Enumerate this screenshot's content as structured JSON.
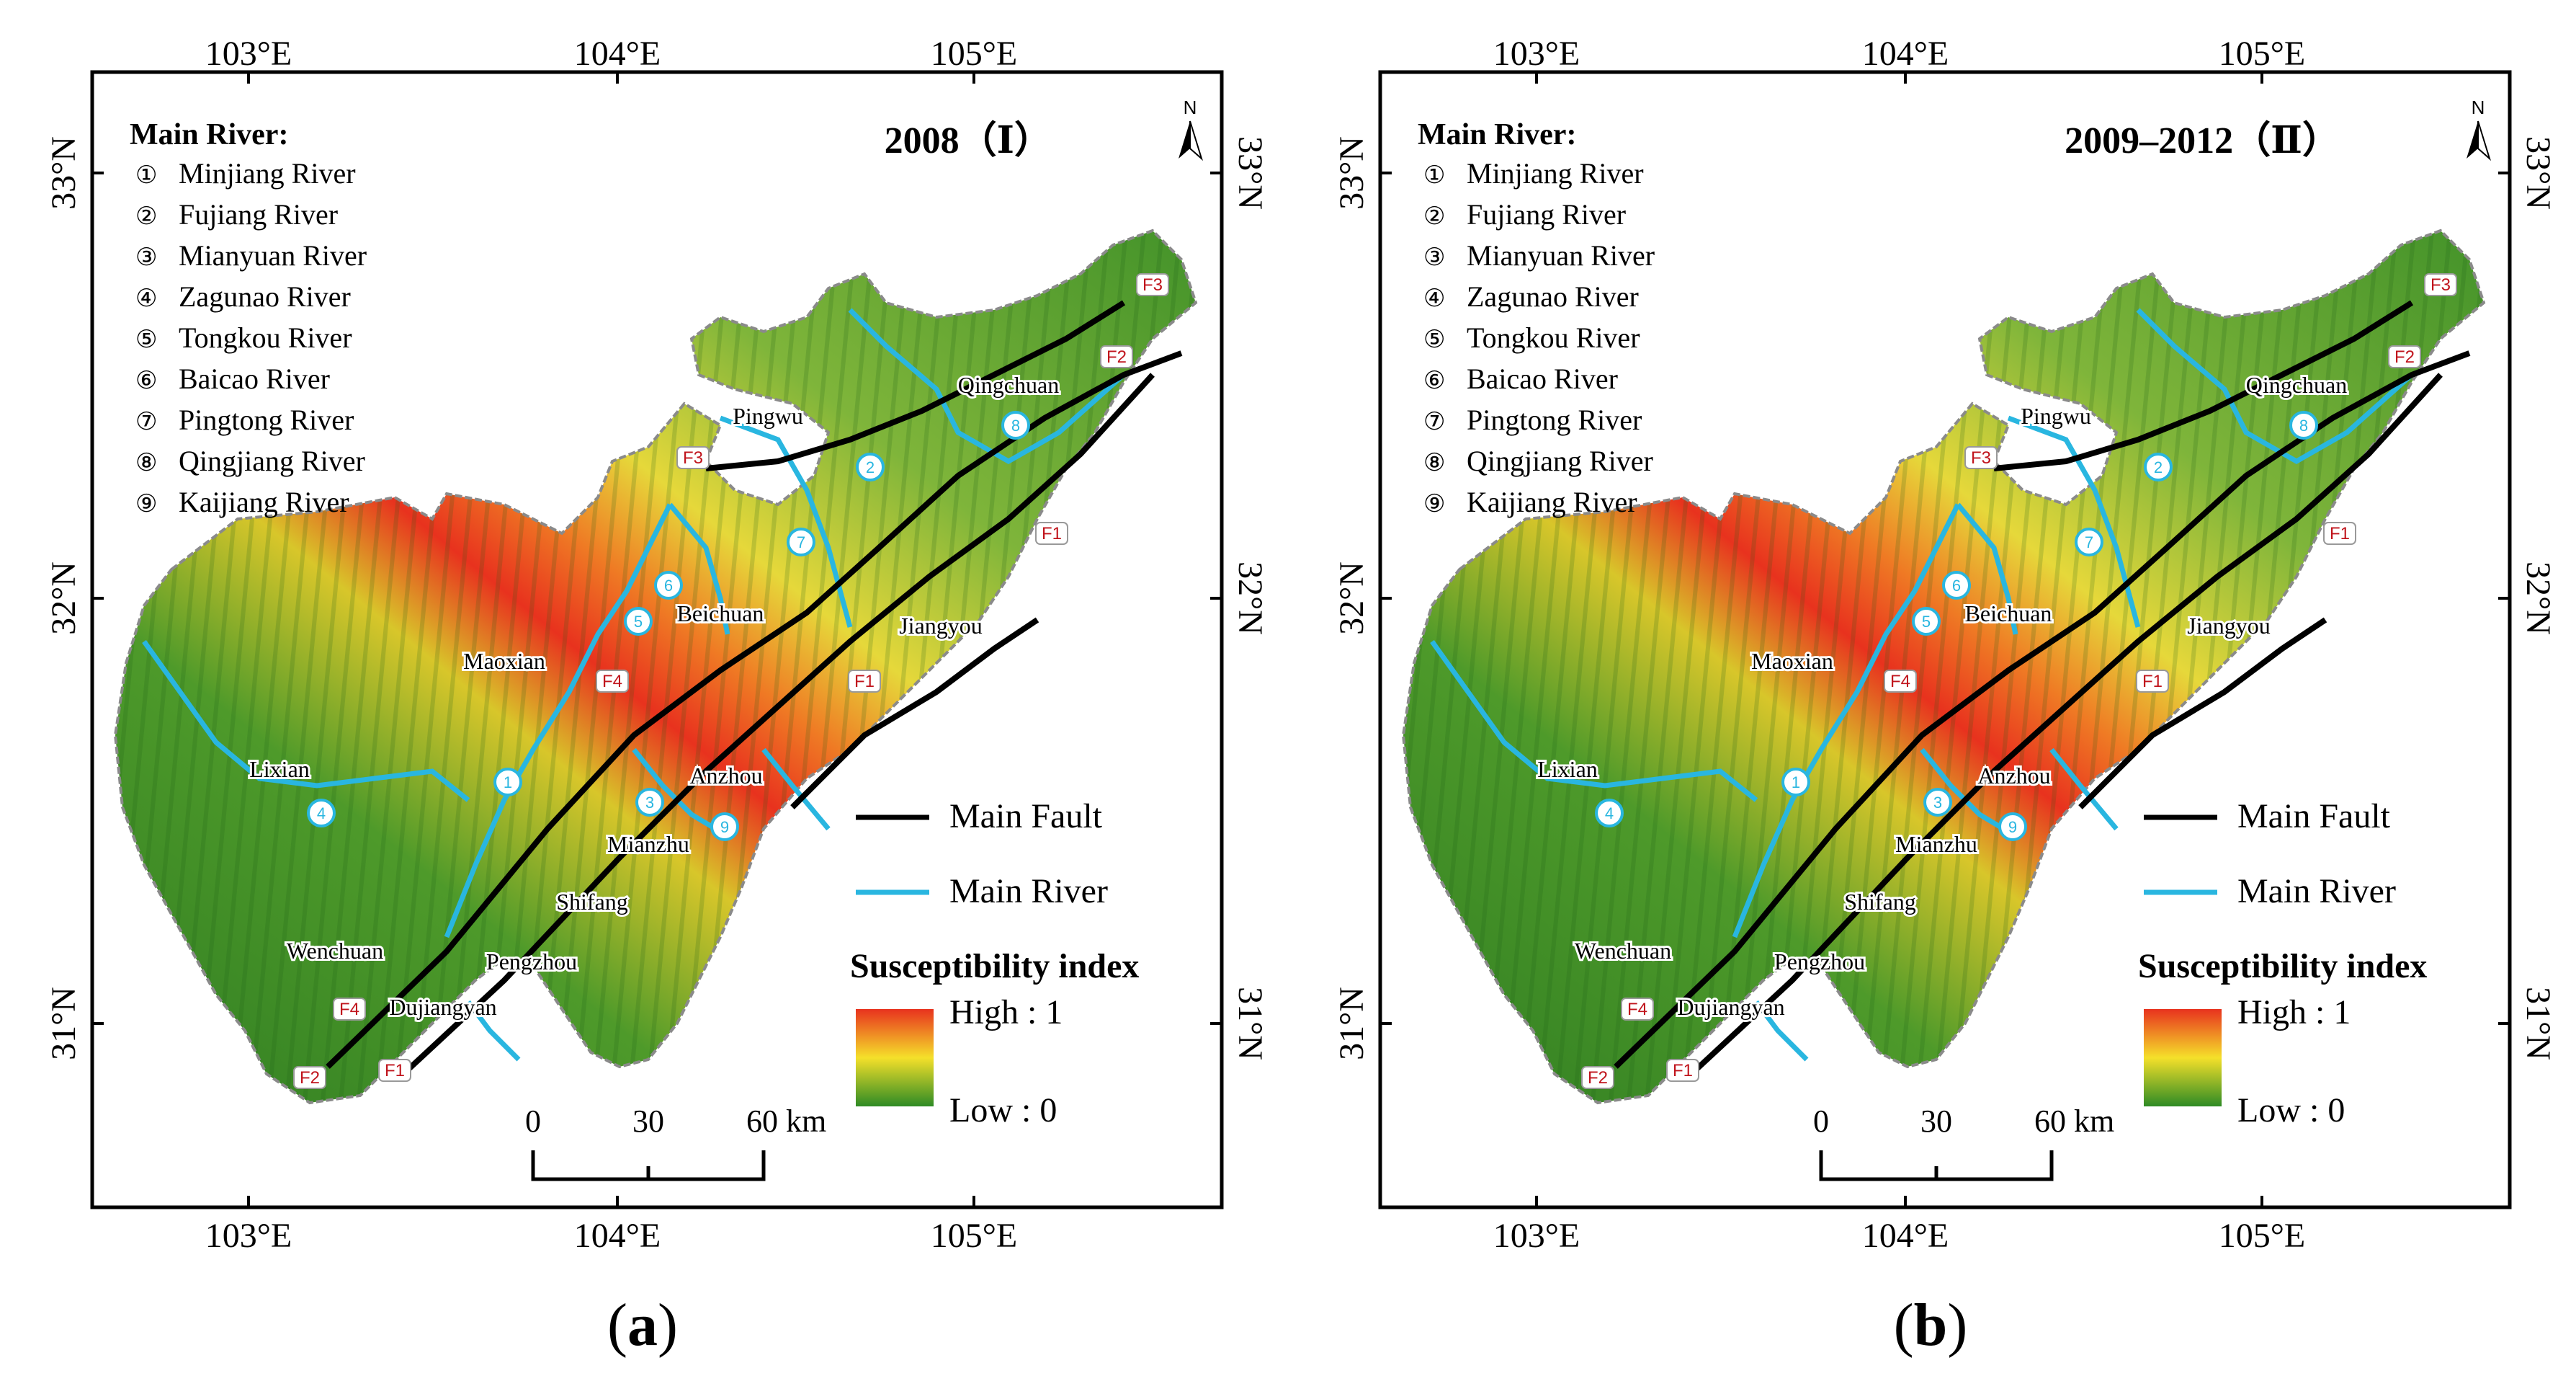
{
  "panels": [
    {
      "id": "a",
      "title": "2008（Ⅰ）",
      "caption_letter": "a",
      "caption_open": "(",
      "caption_close": ")"
    },
    {
      "id": "b",
      "title": "2009–2012（Ⅱ）",
      "caption_letter": "b",
      "caption_open": "(",
      "caption_close": ")"
    }
  ],
  "lon_labels": [
    "103°E",
    "104°E",
    "105°E"
  ],
  "lat_labels": [
    "33°N",
    "32°N",
    "31°N"
  ],
  "north_label": "N",
  "river_list_title": "Main River:",
  "rivers": [
    {
      "num": "①",
      "name": "Minjiang River"
    },
    {
      "num": "②",
      "name": "Fujiang River"
    },
    {
      "num": "③",
      "name": "Mianyuan River"
    },
    {
      "num": "④",
      "name": "Zagunao River"
    },
    {
      "num": "⑤",
      "name": "Tongkou River"
    },
    {
      "num": "⑥",
      "name": "Baicao River"
    },
    {
      "num": "⑦",
      "name": "Pingtong River"
    },
    {
      "num": "⑧",
      "name": "Qingjiang River"
    },
    {
      "num": "⑨",
      "name": "Kaijiang River"
    }
  ],
  "towns": [
    "Qingchuan",
    "Pingwu",
    "Beichuan",
    "Jiangyou",
    "Maoxian",
    "Lixian",
    "Anzhou",
    "Mianzhu",
    "Shifang",
    "Pengzhou",
    "Wenchuan",
    "Dujiangyan"
  ],
  "faults": [
    "F1",
    "F2",
    "F3",
    "F4"
  ],
  "legend": {
    "fault_label": "Main Fault",
    "river_label": "Main River",
    "susceptibility_title": "Susceptibility index",
    "high_label": "High : 1",
    "low_label": "Low : 0"
  },
  "scale_bar": {
    "ticks": [
      "0",
      "30",
      "60 km"
    ]
  },
  "colors": {
    "fault": "#000000",
    "river": "#29b6e0",
    "high": "#e8321e",
    "mid": "#f5e02a",
    "low": "#2e8b25",
    "label_red": "#c0141c"
  }
}
